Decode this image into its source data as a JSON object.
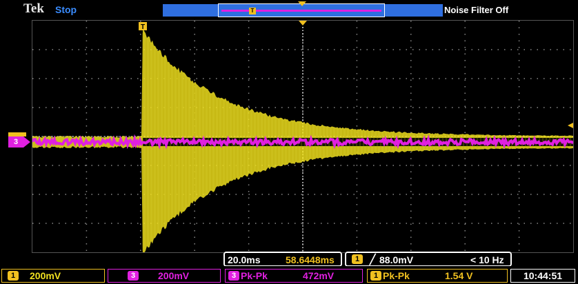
{
  "header": {
    "brand": "Tek",
    "status": "Stop",
    "noise_filter": "Noise Filter Off",
    "trigger_marker_label": "T"
  },
  "timebase": {
    "scale": "20.0ms",
    "position": "58.6448ms"
  },
  "trigger": {
    "channel": "1",
    "level": "88.0mV",
    "frequency": "< 10 Hz"
  },
  "channels": {
    "ch1": {
      "badge": "1",
      "scale": "200mV",
      "color": "#f0e020"
    },
    "ch3": {
      "badge": "3",
      "scale": "200mV",
      "color": "#e020e0"
    }
  },
  "measurements": [
    {
      "badge": "3",
      "label": "Pk-Pk",
      "value": "472mV",
      "color": "#e020e0"
    },
    {
      "badge": "1",
      "label": "Pk-Pk",
      "value": "1.54 V",
      "color": "#f0c020"
    }
  ],
  "clock": "10:44:51",
  "markers": {
    "ch3_ground": "3"
  },
  "colors": {
    "accent_blue": "#2f6fe0",
    "ch1_yellow": "#f0e020",
    "ch3_magenta": "#e020e0",
    "grid": "#8a8a8a"
  }
}
